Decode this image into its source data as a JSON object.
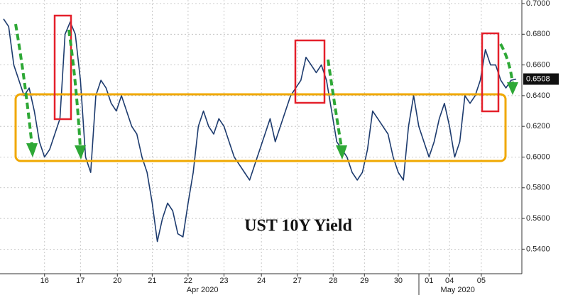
{
  "chart_data": {
    "type": "line",
    "title": "UST 10Y Yield",
    "color": "#1d3b6e",
    "values": [
      0.69,
      0.685,
      0.66,
      0.65,
      0.64,
      0.645,
      0.63,
      0.61,
      0.6,
      0.605,
      0.615,
      0.625,
      0.68,
      0.688,
      0.68,
      0.65,
      0.6,
      0.59,
      0.64,
      0.65,
      0.645,
      0.635,
      0.63,
      0.64,
      0.63,
      0.62,
      0.615,
      0.6,
      0.59,
      0.57,
      0.545,
      0.56,
      0.57,
      0.565,
      0.55,
      0.548,
      0.57,
      0.59,
      0.62,
      0.63,
      0.62,
      0.615,
      0.625,
      0.62,
      0.61,
      0.6,
      0.595,
      0.59,
      0.585,
      0.595,
      0.605,
      0.615,
      0.625,
      0.61,
      0.62,
      0.63,
      0.64,
      0.645,
      0.65,
      0.665,
      0.66,
      0.655,
      0.66,
      0.65,
      0.63,
      0.61,
      0.605,
      0.6,
      0.59,
      0.585,
      0.59,
      0.605,
      0.63,
      0.625,
      0.62,
      0.615,
      0.6,
      0.59,
      0.585,
      0.62,
      0.64,
      0.62,
      0.61,
      0.6,
      0.61,
      0.625,
      0.635,
      0.62,
      0.6,
      0.61,
      0.64,
      0.635,
      0.64,
      0.65,
      0.67,
      0.66,
      0.66,
      0.65,
      0.645,
      0.65,
      0.6508
    ],
    "xlim": [
      0,
      100
    ],
    "xticks": [
      {
        "value": 8,
        "label": "16"
      },
      {
        "value": 15,
        "label": "17"
      },
      {
        "value": 22.2,
        "label": "20"
      },
      {
        "value": 29,
        "label": "21"
      },
      {
        "value": 36,
        "label": "22"
      },
      {
        "value": 43,
        "label": "23"
      },
      {
        "value": 50.3,
        "label": "24"
      },
      {
        "value": 57.3,
        "label": "27"
      },
      {
        "value": 64.3,
        "label": "28"
      },
      {
        "value": 70.4,
        "label": "29"
      },
      {
        "value": 77,
        "label": "30"
      },
      {
        "value": 83,
        "label": "01"
      },
      {
        "value": 87,
        "label": "04"
      },
      {
        "value": 93.2,
        "label": "05"
      }
    ],
    "month_labels": [
      {
        "value": 38.8,
        "label": "Apr 2020"
      },
      {
        "value": 88.6,
        "label": "May 2020"
      }
    ],
    "ylim": [
      0.524,
      0.7
    ],
    "yticks": [
      {
        "value": 0.54,
        "label": "0.5400"
      },
      {
        "value": 0.56,
        "label": "0.5600"
      },
      {
        "value": 0.58,
        "label": "0.5800"
      },
      {
        "value": 0.6,
        "label": "0.6000"
      },
      {
        "value": 0.62,
        "label": "0.6200"
      },
      {
        "value": 0.64,
        "label": "0.6400"
      },
      {
        "value": 0.66,
        "label": "0.6600"
      },
      {
        "value": 0.68,
        "label": "0.6800"
      },
      {
        "value": 0.7,
        "label": "0.7000"
      }
    ],
    "last_value": {
      "value": 0.6508,
      "label": "0.6508"
    },
    "grid": true
  }
}
